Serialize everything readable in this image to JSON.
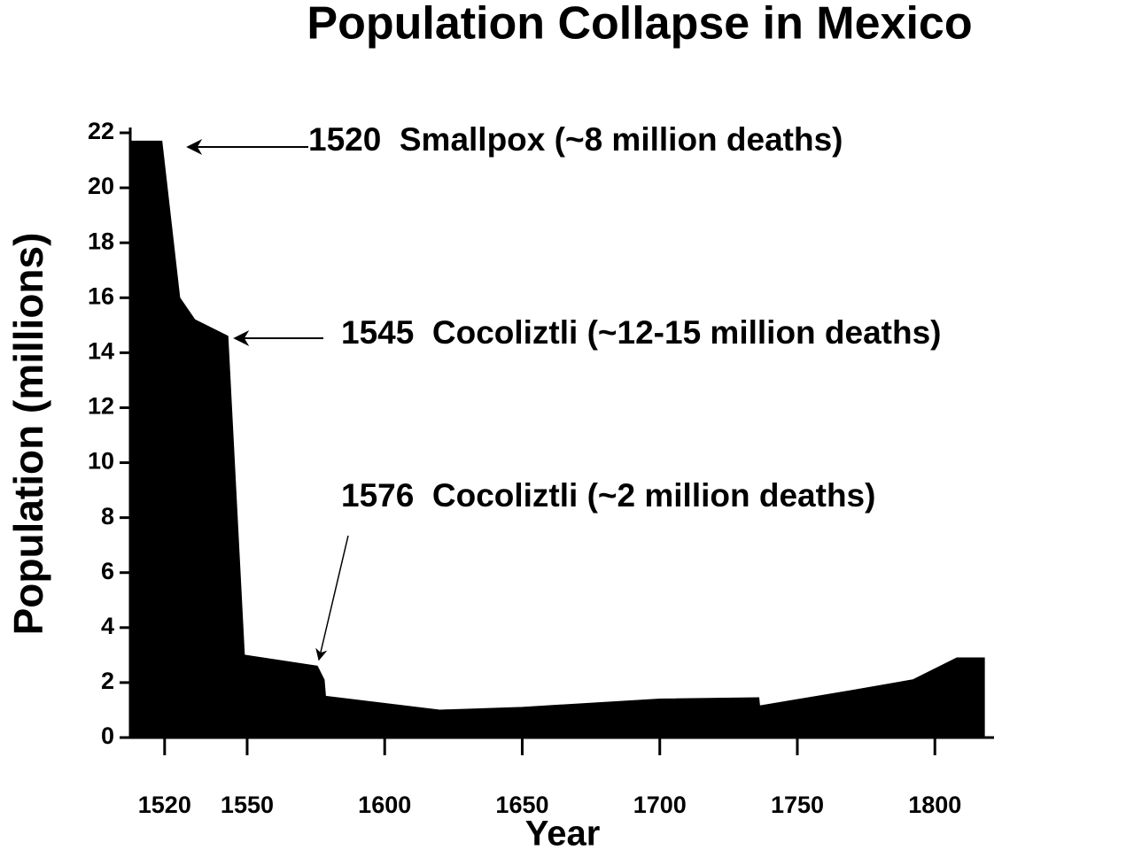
{
  "chart_data": {
    "type": "area",
    "title": "Population Collapse in Mexico",
    "x_label": "Year",
    "y_label": "Population (millions)",
    "x": [
      1508,
      1519,
      1525.5,
      1531,
      1543,
      1549,
      1575.5,
      1578,
      1578.5,
      1620,
      1650,
      1700,
      1736,
      1736.3,
      1748,
      1769,
      1792,
      1808,
      1818
    ],
    "series": [
      {
        "color": "#000000",
        "values": [
          21.7,
          21.7,
          16.0,
          15.2,
          14.6,
          3.0,
          2.6,
          2.1,
          1.5,
          1.0,
          1.1,
          1.4,
          1.45,
          1.15,
          1.35,
          1.7,
          2.1,
          2.9,
          2.9
        ]
      }
    ],
    "xlim": [
      1507.5,
      1821.5
    ],
    "ylim": [
      0,
      22
    ],
    "xticks": [
      1520,
      1550,
      1600,
      1650,
      1700,
      1750,
      1800
    ],
    "yticks": [
      0,
      2,
      4,
      6,
      8,
      10,
      12,
      14,
      16,
      18,
      20,
      22
    ],
    "annotations": [
      "1520  Smallpox (~8 million deaths)",
      "1545  Cocoliztli (~12-15 million deaths)",
      "1576  Cocoliztli (~2 million deaths)"
    ]
  }
}
